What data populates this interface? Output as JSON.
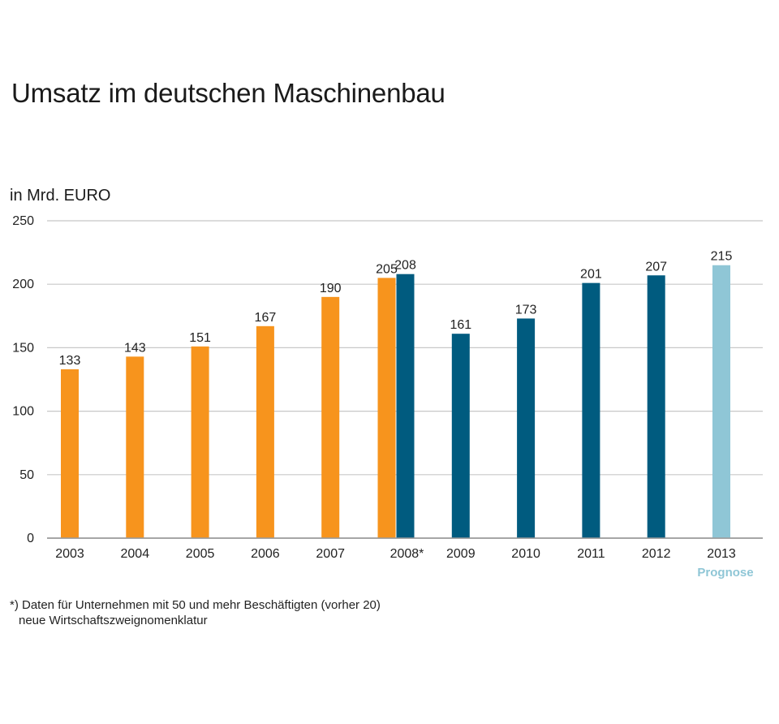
{
  "chart_data": {
    "type": "bar",
    "title": "Umsatz im deutschen Maschinenbau",
    "ylabel": "in Mrd. EURO",
    "ylim": [
      0,
      250
    ],
    "yticks": [
      0,
      50,
      100,
      150,
      200,
      250
    ],
    "grid": true,
    "categories": [
      "2003",
      "2004",
      "2005",
      "2006",
      "2007",
      "2008*",
      "2009",
      "2010",
      "2011",
      "2012",
      "2013"
    ],
    "bars": [
      {
        "category": "2003",
        "value": 133,
        "label": "133",
        "color": "#f7941d"
      },
      {
        "category": "2004",
        "value": 143,
        "label": "143",
        "color": "#f7941d"
      },
      {
        "category": "2005",
        "value": 151,
        "label": "151",
        "color": "#f7941d"
      },
      {
        "category": "2006",
        "value": 167,
        "label": "167",
        "color": "#f7941d"
      },
      {
        "category": "2007",
        "value": 190,
        "label": "190",
        "color": "#f7941d"
      },
      {
        "category": "2008*",
        "value": 205,
        "label": "205",
        "color": "#f7941d"
      },
      {
        "category": "2008*",
        "value": 208,
        "label": "208",
        "color": "#005b7f"
      },
      {
        "category": "2009",
        "value": 161,
        "label": "161",
        "color": "#005b7f"
      },
      {
        "category": "2010",
        "value": 173,
        "label": "173",
        "color": "#005b7f"
      },
      {
        "category": "2011",
        "value": 201,
        "label": "201",
        "color": "#005b7f"
      },
      {
        "category": "2012",
        "value": 207,
        "label": "207",
        "color": "#005b7f"
      },
      {
        "category": "2013",
        "value": 215,
        "label": "215",
        "color": "#8fc6d6"
      }
    ],
    "annotation": "Prognose",
    "annotation_color": "#8fc6d6"
  },
  "footnote": {
    "line1": "*) Daten für Unternehmen mit 50 und mehr Beschäftigten (vorher 20)",
    "line2": "neue Wirtschaftszweignomenklatur"
  }
}
